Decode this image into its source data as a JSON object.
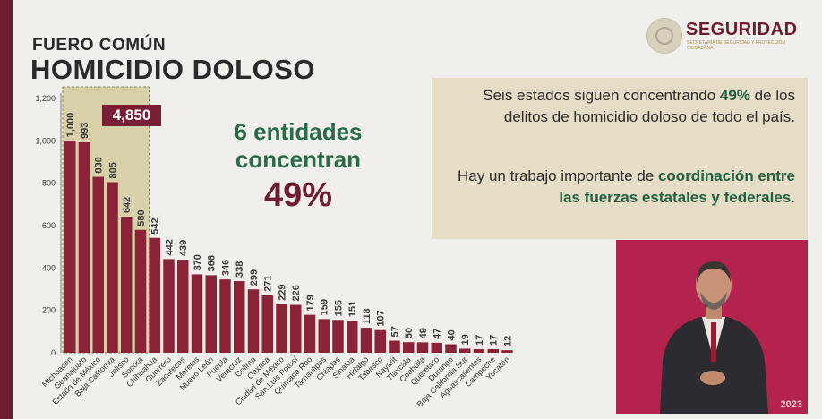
{
  "header": {
    "kicker": "FUERO COMÚN",
    "title": "HOMICIDIO DOLOSO"
  },
  "logo": {
    "brand": "SEGURIDAD",
    "subtitle": "SECRETARÍA DE SEGURIDAD Y PROTECCIÓN CIUDADANA",
    "icon": "seal-icon"
  },
  "highlight": {
    "total": "4,850",
    "line1": "6 entidades",
    "line2": "concentran",
    "percent": "49%"
  },
  "callout": {
    "p1_pre": "Seis estados siguen concentrando ",
    "p1_hl": "49%",
    "p1_post": " de los delitos de homicidio doloso de todo el país.",
    "p2_pre": "Hay un trabajo importante de ",
    "p2_hl": "coordinación entre las fuerzas estatales y federales",
    "p2_post": "."
  },
  "video": {
    "watermark": "2023"
  },
  "colors": {
    "bar": "#8a2238",
    "accent_green": "#2a6b4a",
    "brand": "#6e1d31",
    "highlight_box": "#d8d0a8"
  },
  "chart_data": {
    "type": "bar",
    "title": "HOMICIDIO DOLOSO",
    "ylim": [
      0,
      1200
    ],
    "yticks": [
      "0",
      "200",
      "400",
      "600",
      "800",
      "1,000",
      "1,200"
    ],
    "categories": [
      "Michoacán",
      "Guanajuato",
      "Estado de México",
      "Baja California",
      "Jalisco",
      "Sonora",
      "Chihuahua",
      "Guerrero",
      "Zacatecas",
      "Morelos",
      "Nuevo León",
      "Puebla",
      "Veracruz",
      "Colima",
      "Oaxaca",
      "Ciudad de México",
      "San Luis Potosí",
      "Quintana Roo",
      "Tamaulipas",
      "Chiapas",
      "Sinaloa",
      "Hidalgo",
      "Tabasco",
      "Nayarit",
      "Tlaxcala",
      "Coahuila",
      "Querétaro",
      "Durango",
      "Baja California Sur",
      "Aguascalientes",
      "Campeche",
      "Yucatán"
    ],
    "values": [
      1000,
      993,
      830,
      805,
      642,
      580,
      542,
      442,
      439,
      370,
      366,
      346,
      338,
      299,
      271,
      229,
      226,
      179,
      159,
      155,
      151,
      118,
      107,
      57,
      50,
      49,
      47,
      40,
      19,
      17,
      17,
      12
    ],
    "value_labels": [
      "1,000",
      "993",
      "830",
      "805",
      "642",
      "580",
      "542",
      "442",
      "439",
      "370",
      "366",
      "346",
      "338",
      "299",
      "271",
      "229",
      "226",
      "179",
      "159",
      "155",
      "151",
      "118",
      "107",
      "57",
      "50",
      "49",
      "47",
      "40",
      "19",
      "17",
      "17",
      "12"
    ],
    "highlight_count": 6,
    "grid": false
  }
}
